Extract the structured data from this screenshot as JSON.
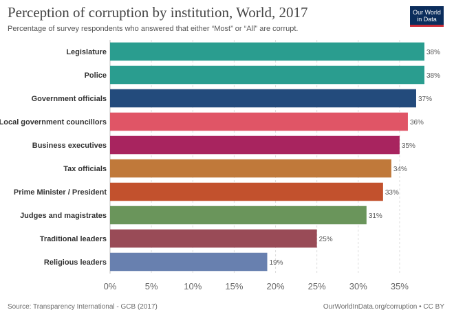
{
  "title": "Perception of corruption by institution, World, 2017",
  "subtitle": "Percentage of survey respondents who answered that either “Most” or “All” are corrupt.",
  "logo": {
    "line1": "Our World",
    "line2": "in Data"
  },
  "footer": {
    "source": "Source: Transparency International - GCB (2017)",
    "link": "OurWorldInData.org/corruption • CC BY"
  },
  "chart_data": {
    "type": "bar",
    "orientation": "horizontal",
    "categories": [
      "Legislature",
      "Police",
      "Government officials",
      "Local government councillors",
      "Business executives",
      "Tax officials",
      "Prime Minister / President",
      "Judges and magistrates",
      "Traditional leaders",
      "Religious leaders"
    ],
    "values": [
      38,
      38,
      37,
      36,
      35,
      34,
      33,
      31,
      25,
      19
    ],
    "value_labels": [
      "38%",
      "38%",
      "37%",
      "36%",
      "35%",
      "34%",
      "33%",
      "31%",
      "25%",
      "19%"
    ],
    "colors": [
      "#2a9d8f",
      "#2a9d8f",
      "#234b7c",
      "#e05566",
      "#a8245f",
      "#c0793a",
      "#c2512d",
      "#6a955b",
      "#994b57",
      "#6880af"
    ],
    "xlim": [
      0,
      38
    ],
    "xticks": [
      0,
      5,
      10,
      15,
      20,
      25,
      30,
      35
    ],
    "xtick_labels": [
      "0%",
      "5%",
      "10%",
      "15%",
      "20%",
      "25%",
      "30%",
      "35%"
    ],
    "grid": "vertical-dashed"
  }
}
